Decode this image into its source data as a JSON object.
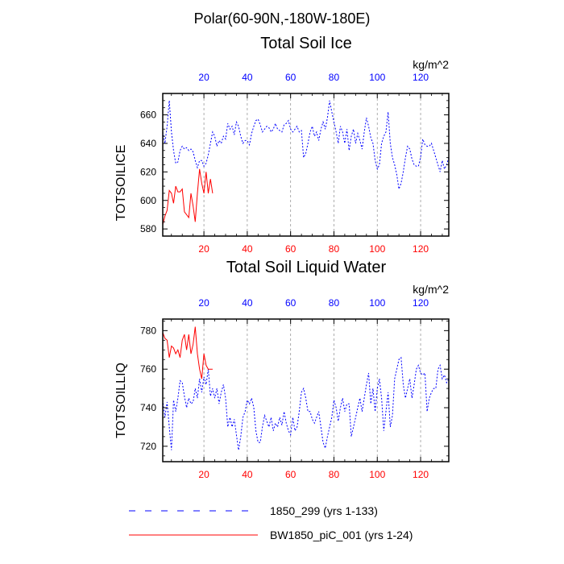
{
  "suptitle": "Polar(60-90N,-180W-180E)",
  "colors": {
    "blue": "#0000ff",
    "red": "#ff0000",
    "black": "#000000",
    "grid": "#999999"
  },
  "units": "kg/m^2",
  "legend": {
    "position": "bottom",
    "entries": [
      {
        "label": "1850_299 (yrs 1-133)",
        "color": "#0000ff",
        "style": "dashed"
      },
      {
        "label": "BW1850_piC_001 (yrs 1-24)",
        "color": "#ff0000",
        "style": "solid"
      }
    ]
  },
  "chart_data": [
    {
      "type": "line",
      "title": "Total Soil Ice",
      "ylabel": "TOTSOILICE",
      "units": "kg/m^2",
      "xlim": [
        1,
        133
      ],
      "ylim": [
        575,
        675
      ],
      "yticks": [
        580,
        600,
        620,
        640,
        660
      ],
      "xticks": [
        20,
        40,
        60,
        80,
        100,
        120
      ],
      "series": [
        {
          "name": "1850_299 (yrs 1-133)",
          "color": "#0000ff",
          "style": "dashed",
          "axis": "top",
          "values": [
            648,
            640,
            652,
            670,
            648,
            635,
            626,
            627,
            635,
            638,
            636,
            637,
            635,
            636,
            634,
            628,
            623,
            628,
            628,
            624,
            626,
            632,
            640,
            648,
            645,
            638,
            642,
            640,
            645,
            643,
            654,
            650,
            652,
            646,
            655,
            652,
            645,
            640,
            642,
            642,
            639,
            647,
            652,
            656,
            657,
            653,
            648,
            650,
            652,
            651,
            648,
            650,
            654,
            650,
            649,
            648,
            653,
            654,
            656,
            650,
            648,
            650,
            652,
            648,
            649,
            630,
            633,
            640,
            648,
            652,
            645,
            648,
            642,
            650,
            655,
            650,
            658,
            670,
            662,
            655,
            648,
            640,
            652,
            648,
            640,
            650,
            635,
            645,
            650,
            640,
            647,
            642,
            636,
            648,
            658,
            652,
            644,
            640,
            628,
            622,
            625,
            640,
            645,
            648,
            662,
            640,
            630,
            625,
            618,
            608,
            612,
            620,
            630,
            638,
            636,
            629,
            625,
            624,
            624,
            630,
            643,
            639,
            638,
            638,
            640,
            635,
            630,
            625,
            620,
            628,
            622,
            625,
            630
          ]
        },
        {
          "name": "BW1850_piC_001 (yrs 1-24)",
          "color": "#ff0000",
          "style": "solid",
          "axis": "bottom",
          "values": [
            583,
            589,
            593,
            607,
            605,
            598,
            610,
            606,
            606,
            608,
            592,
            590,
            588,
            605,
            596,
            585,
            605,
            622,
            612,
            605,
            620,
            605,
            615,
            605
          ]
        }
      ]
    },
    {
      "type": "line",
      "title": "Total Soil Liquid Water",
      "ylabel": "TOTSOILLIQ",
      "units": "kg/m^2",
      "xlim": [
        1,
        133
      ],
      "ylim": [
        712,
        786
      ],
      "yticks": [
        720,
        740,
        760,
        780
      ],
      "xticks": [
        20,
        40,
        60,
        80,
        100,
        120
      ],
      "series": [
        {
          "name": "1850_299 (yrs 1-133)",
          "color": "#0000ff",
          "style": "dashed",
          "axis": "top",
          "values": [
            744,
            735,
            743,
            730,
            718,
            744,
            738,
            745,
            754,
            753,
            746,
            740,
            745,
            742,
            743,
            750,
            745,
            755,
            748,
            756,
            752,
            760,
            746,
            750,
            745,
            750,
            742,
            748,
            752,
            745,
            730,
            735,
            730,
            734,
            726,
            718,
            725,
            735,
            738,
            744,
            742,
            745,
            740,
            728,
            722,
            722,
            730,
            736,
            733,
            730,
            735,
            728,
            732,
            730,
            735,
            731,
            738,
            732,
            728,
            726,
            735,
            728,
            730,
            738,
            748,
            750,
            745,
            738,
            738,
            734,
            732,
            735,
            738,
            730,
            722,
            719,
            725,
            730,
            735,
            744,
            740,
            733,
            740,
            745,
            738,
            742,
            742,
            725,
            730,
            735,
            740,
            745,
            738,
            745,
            752,
            758,
            742,
            750,
            738,
            750,
            755,
            745,
            728,
            738,
            748,
            730,
            736,
            755,
            760,
            765,
            766,
            752,
            745,
            750,
            755,
            745,
            752,
            760,
            762,
            758,
            757,
            758,
            738,
            745,
            748,
            750,
            750,
            760,
            762,
            755,
            757,
            753,
            755
          ]
        },
        {
          "name": "BW1850_piC_001 (yrs 1-24)",
          "color": "#ff0000",
          "style": "solid",
          "axis": "bottom",
          "values": [
            779,
            776,
            775,
            766,
            772,
            771,
            768,
            770,
            766,
            775,
            778,
            770,
            778,
            768,
            773,
            782,
            768,
            760,
            755,
            768,
            762,
            760,
            760,
            760
          ]
        }
      ]
    }
  ]
}
